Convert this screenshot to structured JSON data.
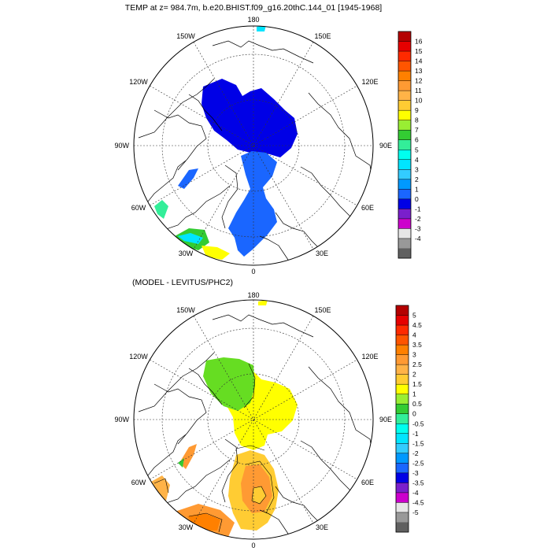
{
  "top_panel": {
    "title": "TEMP at z= 984.7m, b.e20.BHIST.f09_g16.20thC.144_01 [1945-1968]",
    "lon_labels": {
      "top": "180",
      "bottom": "0",
      "w150": "150W",
      "e150": "150E",
      "w120": "120W",
      "e120": "120E",
      "w90": "90W",
      "e90": "90E",
      "w60": "60W",
      "e60": "60E",
      "w30": "30W",
      "e30": "30E"
    },
    "colorbar": {
      "labels": [
        "16",
        "15",
        "14",
        "13",
        "12",
        "11",
        "10",
        "9",
        "8",
        "7",
        "6",
        "5",
        "4",
        "3",
        "2",
        "1",
        "0",
        "-1",
        "-2",
        "-3",
        "-4"
      ],
      "colors": [
        "#b40000",
        "#e60000",
        "#ff2a00",
        "#ff5500",
        "#ff8000",
        "#ff9a33",
        "#ffb347",
        "#ffcc33",
        "#ffff00",
        "#99ee33",
        "#33cc33",
        "#33ee99",
        "#00ffee",
        "#00e5ff",
        "#33ccff",
        "#0099ff",
        "#1a66ff",
        "#0000e6",
        "#7a1fcc",
        "#cc00cc",
        "#e6e6e6",
        "#999999",
        "#606060"
      ]
    }
  },
  "bottom_panel": {
    "title": "(MODEL - LEVITUS/PHC2)",
    "lon_labels": {
      "top": "180",
      "bottom": "0",
      "w150": "150W",
      "e150": "150E",
      "w120": "120W",
      "e120": "120E",
      "w90": "90W",
      "e90": "90E",
      "w60": "60W",
      "e60": "60E",
      "w30": "30W",
      "e30": "30E"
    },
    "colorbar": {
      "labels": [
        "5",
        "4.5",
        "4",
        "3.5",
        "3",
        "2.5",
        "2",
        "1.5",
        "1",
        "0.5",
        "0",
        "-0.5",
        "-1",
        "-1.5",
        "-2",
        "-2.5",
        "-3",
        "-3.5",
        "-4",
        "-4.5",
        "-5"
      ],
      "colors": [
        "#b40000",
        "#e60000",
        "#ff2a00",
        "#ff5500",
        "#ff8000",
        "#ff9a33",
        "#ffb347",
        "#ffcc33",
        "#ffff00",
        "#99ee33",
        "#33cc33",
        "#33ee99",
        "#00ffee",
        "#00e5ff",
        "#33ccff",
        "#0099ff",
        "#1a66ff",
        "#0000e6",
        "#7a1fcc",
        "#cc00cc",
        "#e6e6e6",
        "#999999",
        "#606060"
      ]
    }
  }
}
